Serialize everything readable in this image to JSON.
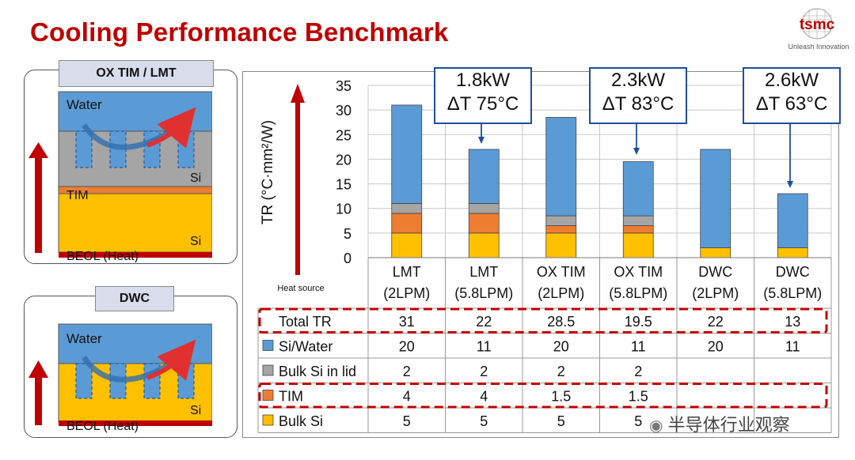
{
  "slide": {
    "title": "Cooling Performance Benchmark",
    "logo_text": "tsmc",
    "tagline": "Unleash Innovation",
    "watermark": "半导体行业观察"
  },
  "diagrams": {
    "ox": {
      "label": "OX TIM / LMT",
      "water": "Water",
      "si_top": "Si",
      "tim": "TIM",
      "si_bottom": "Si",
      "beol": "BEOL (Heat)"
    },
    "dwc": {
      "label": "DWC",
      "water": "Water",
      "si": "Si",
      "beol": "BEOL (Heat)"
    }
  },
  "callouts": [
    {
      "line1": "1.8kW",
      "line2": "ΔT 75°C"
    },
    {
      "line1": "2.3kW",
      "line2": "ΔT 83°C"
    },
    {
      "line1": "2.6kW",
      "line2": "ΔT 63°C"
    }
  ],
  "chart_data": {
    "type": "bar",
    "stacked": true,
    "ylabel": "TR (°C·mm²/W)",
    "side_label": "Heat source",
    "ylim": [
      0,
      35
    ],
    "yticks": [
      0,
      5,
      10,
      15,
      20,
      25,
      30,
      35
    ],
    "grid": true,
    "categories": [
      [
        "LMT",
        "(2LPM)"
      ],
      [
        "LMT",
        "(5.8LPM)"
      ],
      [
        "OX TIM",
        "(2LPM)"
      ],
      [
        "OX TIM",
        "(5.8LPM)"
      ],
      [
        "DWC",
        "(2LPM)"
      ],
      [
        "DWC",
        "(5.8LPM)"
      ]
    ],
    "series": [
      {
        "name": "Bulk Si",
        "color": "#ffc000",
        "values": [
          5,
          5,
          5,
          5,
          2,
          2
        ]
      },
      {
        "name": "TIM",
        "color": "#ed7d31",
        "values": [
          4,
          4,
          1.5,
          1.5,
          0,
          0
        ]
      },
      {
        "name": "Bulk Si in lid",
        "color": "#a5a5a5",
        "values": [
          2,
          2,
          2,
          2,
          0,
          0
        ]
      },
      {
        "name": "Si/Water",
        "color": "#5b9bd5",
        "values": [
          20,
          11,
          20,
          11,
          20,
          11
        ]
      }
    ],
    "total_label": "Total TR",
    "totals": [
      31,
      22,
      28.5,
      19.5,
      22,
      13
    ],
    "table_rows": [
      {
        "label": "Total TR",
        "swatch": "",
        "cells": [
          "31",
          "22",
          "28.5",
          "19.5",
          "22",
          "13"
        ],
        "highlight": true
      },
      {
        "label": "Si/Water",
        "swatch": "#5b9bd5",
        "cells": [
          "20",
          "11",
          "20",
          "11",
          "20",
          "11"
        ],
        "highlight": false
      },
      {
        "label": "Bulk Si in lid",
        "swatch": "#a5a5a5",
        "cells": [
          "2",
          "2",
          "2",
          "2",
          "",
          ""
        ],
        "highlight": false
      },
      {
        "label": "TIM",
        "swatch": "#ed7d31",
        "cells": [
          "4",
          "4",
          "1.5",
          "1.5",
          "",
          ""
        ],
        "highlight": true
      },
      {
        "label": "Bulk Si",
        "swatch": "#ffc000",
        "cells": [
          "5",
          "5",
          "5",
          "5",
          "",
          ""
        ],
        "highlight": false
      }
    ]
  }
}
